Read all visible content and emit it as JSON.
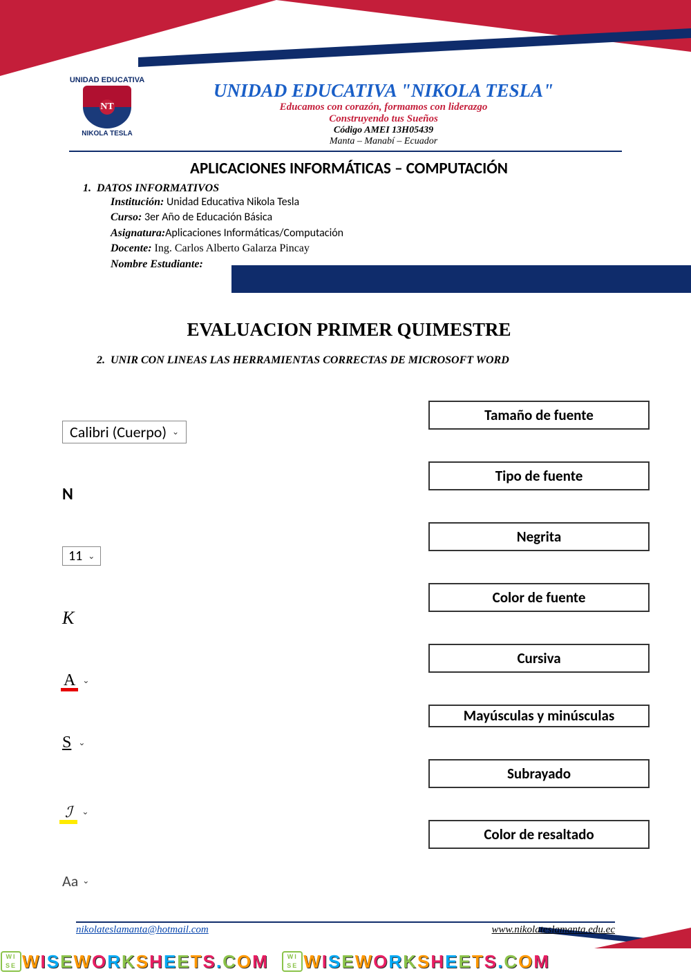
{
  "colors": {
    "red": "#c41e3a",
    "navy": "#0f2c6b",
    "blue_link": "#0645ad",
    "title_blue": "#1a5fc7",
    "highlight_yellow": "#ffeb00",
    "font_color_red": "#e60000"
  },
  "letterhead": {
    "logo_top": "UNIDAD EDUCATIVA",
    "logo_bottom": "NIKOLA TESLA",
    "title": "UNIDAD EDUCATIVA \"NIKOLA TESLA\"",
    "slogan1": "Educamos con corazón, formamos con liderazgo",
    "slogan2": "Construyendo tus Sueños",
    "code": "Código AMEI 13H05439",
    "location": "Manta – Manabí – Ecuador"
  },
  "subject": "APLICACIONES INFORMÁTICAS – COMPUTACIÓN",
  "section1": {
    "num": "1.",
    "heading": "DATOS INFORMATIVOS",
    "rows": {
      "institucion_lbl": "Institución:",
      "institucion_val": " Unidad Educativa Nikola Tesla",
      "curso_lbl": "Curso:",
      "curso_val": " 3er Año de Educación Básica",
      "asignatura_lbl": "Asignatura:",
      "asignatura_val": "Aplicaciones Informáticas/Computación",
      "docente_lbl": "Docente:",
      "docente_val": " Ing. Carlos Alberto Galarza Pincay",
      "nombre_lbl": "Nombre Estudiante:"
    }
  },
  "eval_title": "EVALUACION PRIMER QUIMESTRE",
  "section2": {
    "num": "2.",
    "text": "UNIR CON LINEAS LAS HERRAMIENTAS CORRECTAS DE MICROSOFT WORD"
  },
  "tools": {
    "font_dropdown": "Calibri (Cuerpo)",
    "bold": "N",
    "size_dropdown": "11",
    "italic": "K",
    "font_color": "A",
    "underline": "S",
    "highlight": "✎",
    "case": "Aa"
  },
  "answers": [
    "Tamaño de fuente",
    "Tipo de fuente",
    "Negrita",
    "Color de fuente",
    "Cursiva",
    "Mayúsculas y minúsculas",
    "Subrayado",
    "Color de resaltado"
  ],
  "footer": {
    "email": "nikolateslamanta@hotmail.com",
    "web": "www.nikolateslamanta.edu.ec"
  },
  "watermark": {
    "text": "WISEWORKSHEETS.COM",
    "tile_colors": [
      "#8bc34a",
      "#ff9800",
      "#e91e63",
      "#03a9f4"
    ]
  }
}
